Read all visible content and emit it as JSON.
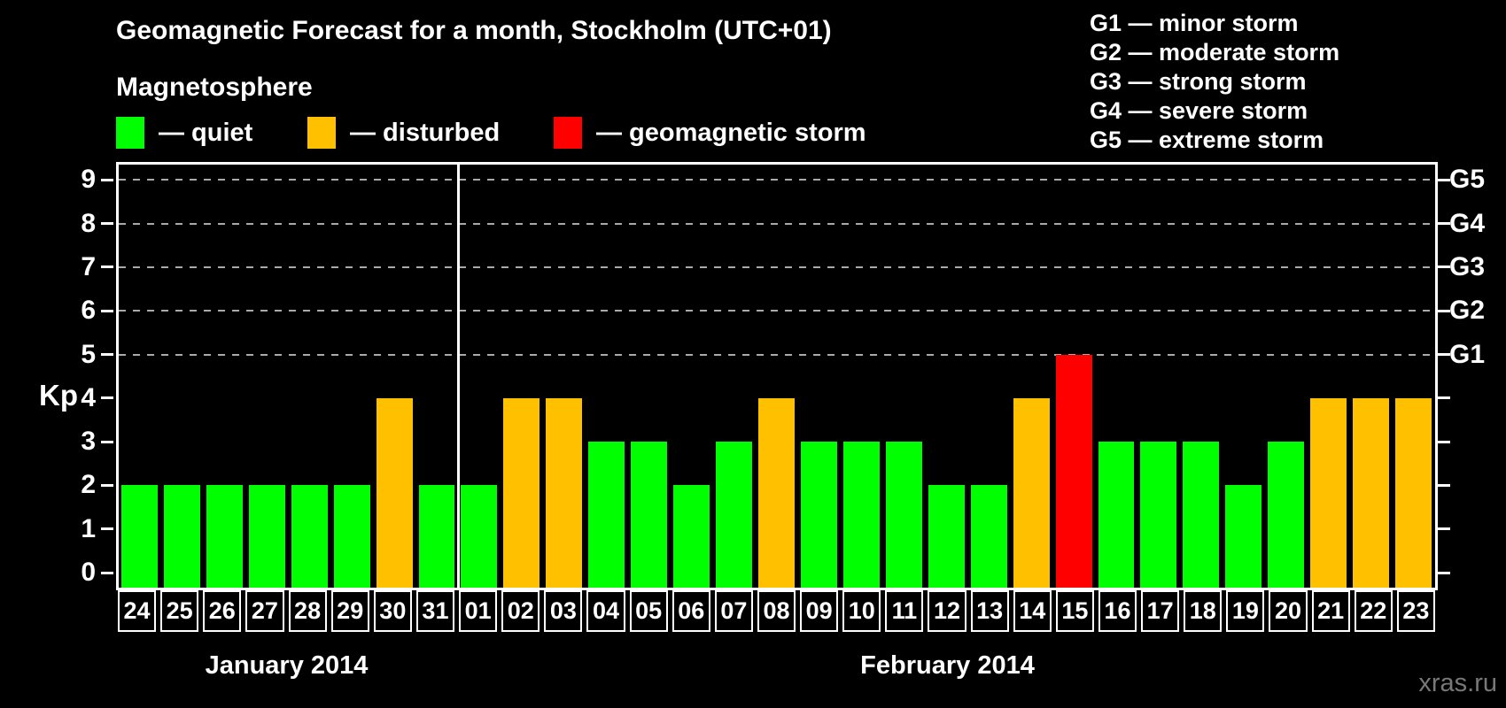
{
  "title": "Geomagnetic Forecast for a month, Stockholm (UTC+01)",
  "subtitle": "Magnetosphere",
  "legend": {
    "items": [
      {
        "status": "quiet",
        "label": "— quiet"
      },
      {
        "status": "disturbed",
        "label": "— disturbed"
      },
      {
        "status": "storm",
        "label": "— geomagnetic storm"
      }
    ]
  },
  "g_legend": {
    "lines": [
      "G1 — minor storm",
      "G2 — moderate storm",
      "G3 — strong storm",
      "G4 — severe storm",
      "G5 — extreme storm"
    ]
  },
  "watermark": "xras.ru",
  "colors": {
    "quiet": "#00ff00",
    "disturbed": "#ffc000",
    "storm": "#ff0000",
    "axis": "#ffffff",
    "gridline": "#aaaaaa",
    "watermark": "#787878"
  },
  "chart_data": {
    "type": "bar",
    "title": "Geomagnetic Forecast for a month, Stockholm (UTC+01)",
    "xlabel": "",
    "ylabel": "Kp",
    "ylim": [
      0,
      9
    ],
    "grid": "dashed horizontal lines at Kp 5-9 only",
    "legend_position": "top",
    "y_ticks": [
      0,
      1,
      2,
      3,
      4,
      5,
      6,
      7,
      8,
      9
    ],
    "g_axis_labels": [
      {
        "kp": 5,
        "label": "G1"
      },
      {
        "kp": 6,
        "label": "G2"
      },
      {
        "kp": 7,
        "label": "G3"
      },
      {
        "kp": 8,
        "label": "G4"
      },
      {
        "kp": 9,
        "label": "G5"
      }
    ],
    "months": [
      {
        "label": "January 2014",
        "days": 8
      },
      {
        "label": "February 2014",
        "days": 23
      }
    ],
    "points": [
      {
        "date": "24",
        "month": 0,
        "kp": 2,
        "status": "quiet"
      },
      {
        "date": "25",
        "month": 0,
        "kp": 2,
        "status": "quiet"
      },
      {
        "date": "26",
        "month": 0,
        "kp": 2,
        "status": "quiet"
      },
      {
        "date": "27",
        "month": 0,
        "kp": 2,
        "status": "quiet"
      },
      {
        "date": "28",
        "month": 0,
        "kp": 2,
        "status": "quiet"
      },
      {
        "date": "29",
        "month": 0,
        "kp": 2,
        "status": "quiet"
      },
      {
        "date": "30",
        "month": 0,
        "kp": 4,
        "status": "disturbed"
      },
      {
        "date": "31",
        "month": 0,
        "kp": 2,
        "status": "quiet"
      },
      {
        "date": "01",
        "month": 1,
        "kp": 2,
        "status": "quiet"
      },
      {
        "date": "02",
        "month": 1,
        "kp": 4,
        "status": "disturbed"
      },
      {
        "date": "03",
        "month": 1,
        "kp": 4,
        "status": "disturbed"
      },
      {
        "date": "04",
        "month": 1,
        "kp": 3,
        "status": "quiet"
      },
      {
        "date": "05",
        "month": 1,
        "kp": 3,
        "status": "quiet"
      },
      {
        "date": "06",
        "month": 1,
        "kp": 2,
        "status": "quiet"
      },
      {
        "date": "07",
        "month": 1,
        "kp": 3,
        "status": "quiet"
      },
      {
        "date": "08",
        "month": 1,
        "kp": 4,
        "status": "disturbed"
      },
      {
        "date": "09",
        "month": 1,
        "kp": 3,
        "status": "quiet"
      },
      {
        "date": "10",
        "month": 1,
        "kp": 3,
        "status": "quiet"
      },
      {
        "date": "11",
        "month": 1,
        "kp": 3,
        "status": "quiet"
      },
      {
        "date": "12",
        "month": 1,
        "kp": 2,
        "status": "quiet"
      },
      {
        "date": "13",
        "month": 1,
        "kp": 2,
        "status": "quiet"
      },
      {
        "date": "14",
        "month": 1,
        "kp": 4,
        "status": "disturbed"
      },
      {
        "date": "15",
        "month": 1,
        "kp": 5,
        "status": "storm"
      },
      {
        "date": "16",
        "month": 1,
        "kp": 3,
        "status": "quiet"
      },
      {
        "date": "17",
        "month": 1,
        "kp": 3,
        "status": "quiet"
      },
      {
        "date": "18",
        "month": 1,
        "kp": 3,
        "status": "quiet"
      },
      {
        "date": "19",
        "month": 1,
        "kp": 2,
        "status": "quiet"
      },
      {
        "date": "20",
        "month": 1,
        "kp": 3,
        "status": "quiet"
      },
      {
        "date": "21",
        "month": 1,
        "kp": 4,
        "status": "disturbed"
      },
      {
        "date": "22",
        "month": 1,
        "kp": 4,
        "status": "disturbed"
      },
      {
        "date": "23",
        "month": 1,
        "kp": 4,
        "status": "disturbed"
      }
    ]
  }
}
